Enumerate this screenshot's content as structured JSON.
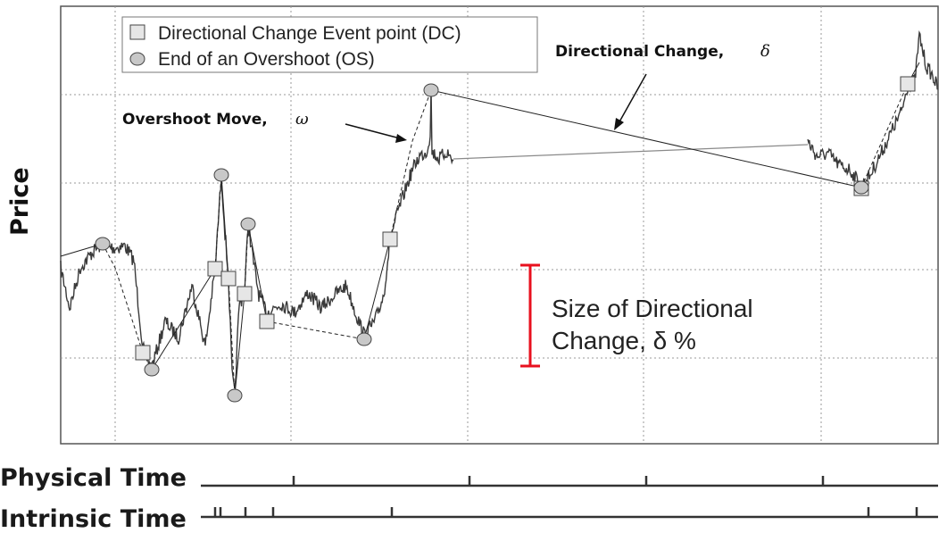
{
  "axis": {
    "ylabel": "Price"
  },
  "legend": {
    "dc_label": "Directional Change Event point (DC)",
    "os_label": "End of an Overshoot (OS)"
  },
  "annotations": {
    "dc_title": "Directional Change,",
    "dc_symbol": "δ",
    "os_title": "Overshoot Move,",
    "os_symbol": "ω",
    "size_line1": "Size of Directional",
    "size_line2": "Change, δ %"
  },
  "timelines": {
    "physical_label": "Physical Time",
    "intrinsic_label": "Intrinsic Time"
  },
  "colors": {
    "price_line": "#3a3a3a",
    "marker_fill": "#e6e6e6",
    "os_marker_fill": "#c8c8c8",
    "size_bar": "#e8101e",
    "grid": "#9a9a9a"
  }
}
